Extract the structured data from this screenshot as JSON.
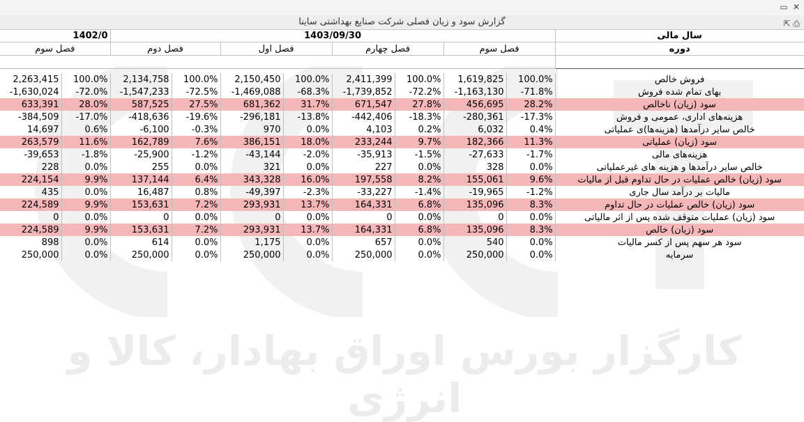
{
  "window": {
    "title": "گزارش سود و زیان فصلی شرکت صنایع بهداشتی ساینا"
  },
  "header": {
    "fiscal_year_label": "سال مالی",
    "period_label": "دوره",
    "year_1403": "1403/09/30",
    "year_1402": "1402/0",
    "periods": [
      "فصل سوم",
      "فصل دوم",
      "فصل اول",
      "فصل چهارم",
      "فصل سوم"
    ]
  },
  "rows": [
    {
      "label": "فروش خالص",
      "band": false,
      "cells": [
        "1,619,825",
        "100.0%",
        "2,411,399",
        "100.0%",
        "2,150,450",
        "100.0%",
        "2,134,758",
        "100.0%",
        "2,263,415",
        "100.0%"
      ]
    },
    {
      "label": "بهای تمام شده فروش",
      "band": false,
      "cells": [
        "-1,163,130",
        "-71.8%",
        "-1,739,852",
        "-72.2%",
        "-1,469,088",
        "-68.3%",
        "-1,547,233",
        "-72.5%",
        "-1,630,024",
        "-72.0%"
      ]
    },
    {
      "label": "سود (زیان) ناخالص",
      "band": true,
      "cells": [
        "456,695",
        "28.2%",
        "671,547",
        "27.8%",
        "681,362",
        "31.7%",
        "587,525",
        "27.5%",
        "633,391",
        "28.0%"
      ]
    },
    {
      "label": "هزینه‌های اداری، عمومی و فروش",
      "band": false,
      "cells": [
        "-280,361",
        "-17.3%",
        "-442,406",
        "-18.3%",
        "-296,181",
        "-13.8%",
        "-418,636",
        "-19.6%",
        "-384,509",
        "-17.0%"
      ]
    },
    {
      "label": "خالص سایر درآمدها (هزینه‌ها)ی عملیاتی",
      "band": false,
      "cells": [
        "6,032",
        "0.4%",
        "4,103",
        "0.2%",
        "970",
        "0.0%",
        "-6,100",
        "-0.3%",
        "14,697",
        "0.6%"
      ]
    },
    {
      "label": "سود (زیان) عملیاتی",
      "band": true,
      "cells": [
        "182,366",
        "11.3%",
        "233,244",
        "9.7%",
        "386,151",
        "18.0%",
        "162,789",
        "7.6%",
        "263,579",
        "11.6%"
      ]
    },
    {
      "label": "هزینه‌های مالی",
      "band": false,
      "cells": [
        "-27,633",
        "-1.7%",
        "-35,913",
        "-1.5%",
        "-43,144",
        "-2.0%",
        "-25,900",
        "-1.2%",
        "-39,653",
        "-1.8%"
      ]
    },
    {
      "label": "خالص سایر درآمدها و هزینه های غیرعملیاتی",
      "band": false,
      "cells": [
        "328",
        "0.0%",
        "227",
        "0.0%",
        "321",
        "0.0%",
        "255",
        "0.0%",
        "228",
        "0.0%"
      ]
    },
    {
      "label": "سود (زیان) خالص عملیات در حال تداوم قبل از مالیات",
      "band": true,
      "cells": [
        "155,061",
        "9.6%",
        "197,558",
        "8.2%",
        "343,328",
        "16.0%",
        "137,144",
        "6.4%",
        "224,154",
        "9.9%"
      ]
    },
    {
      "label": "مالیات بر درآمد سال جاری",
      "band": false,
      "cells": [
        "-19,965",
        "-1.2%",
        "-33,227",
        "-1.4%",
        "-49,397",
        "-2.3%",
        "16,487",
        "0.8%",
        "435",
        "0.0%"
      ]
    },
    {
      "label": "سود (زیان) خالص عملیات در حال تداوم",
      "band": true,
      "cells": [
        "135,096",
        "8.3%",
        "164,331",
        "6.8%",
        "293,931",
        "13.7%",
        "153,631",
        "7.2%",
        "224,589",
        "9.9%"
      ]
    },
    {
      "label": "سود (زیان) عملیات متوقف شده پس از اثر مالیاتی",
      "band": false,
      "cells": [
        "0",
        "0.0%",
        "0",
        "0.0%",
        "0",
        "0.0%",
        "0",
        "0.0%",
        "0",
        "0.0%"
      ]
    },
    {
      "label": "سود (زیان) خالص",
      "band": true,
      "cells": [
        "135,096",
        "8.3%",
        "164,331",
        "6.8%",
        "293,931",
        "13.7%",
        "153,631",
        "7.2%",
        "224,589",
        "9.9%"
      ]
    },
    {
      "label": "سود هر سهم پس از کسر مالیات",
      "band": false,
      "cells": [
        "540",
        "0.0%",
        "657",
        "0.0%",
        "1,175",
        "0.0%",
        "614",
        "0.0%",
        "898",
        "0.0%"
      ]
    },
    {
      "label": "سرمایه",
      "band": false,
      "cells": [
        "250,000",
        "0.0%",
        "250,000",
        "0.0%",
        "250,000",
        "0.0%",
        "250,000",
        "0.0%",
        "250,000",
        "0.0%"
      ]
    }
  ],
  "watermark": {
    "text": "کارگزار بورس اوراق بهادار، کالا و انرژی"
  },
  "icons": {
    "restore": "restore-icon",
    "close": "close-icon",
    "export": "export-icon",
    "print": "print-icon"
  },
  "colors": {
    "band": "#f5b6b8",
    "grid": "#bfbfbf"
  }
}
